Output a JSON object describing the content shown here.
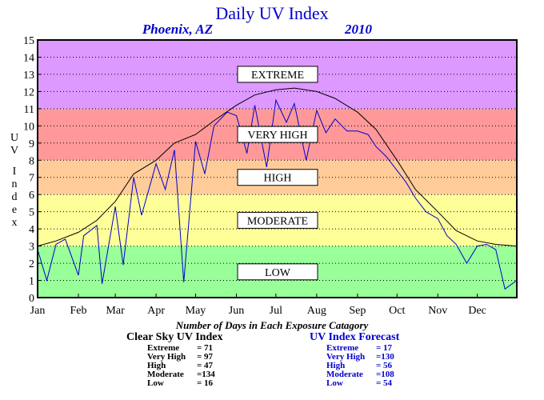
{
  "chart_data": {
    "type": "line",
    "title": "Daily UV Index",
    "subtitle_location": "Phoenix, AZ",
    "subtitle_year": "2010",
    "ylabel": "UV Index",
    "ylim": [
      0,
      15
    ],
    "yticks": [
      "0",
      "1",
      "2",
      "3",
      "4",
      "5",
      "6",
      "7",
      "8",
      "9",
      "10",
      "11",
      "12",
      "13",
      "14",
      "15"
    ],
    "months": [
      "Jan",
      "Feb",
      "Mar",
      "Apr",
      "May",
      "Jun",
      "Jul",
      "Aug",
      "Sep",
      "Oct",
      "Nov",
      "Dec"
    ],
    "grid": true,
    "zones": [
      {
        "label": "LOW",
        "from": 0,
        "to": 3,
        "color": "#99ff99"
      },
      {
        "label": "MODERATE",
        "from": 3,
        "to": 6,
        "color": "#ffff99"
      },
      {
        "label": "HIGH",
        "from": 6,
        "to": 8,
        "color": "#ffcc99"
      },
      {
        "label": "VERY HIGH",
        "from": 8,
        "to": 11,
        "color": "#ff9999"
      },
      {
        "label": "EXTREME",
        "from": 11,
        "to": 15,
        "color": "#dd99ff"
      }
    ],
    "series": [
      {
        "name": "Clear Sky UV Index",
        "color": "#000000",
        "x_day": [
          1,
          15,
          32,
          46,
          60,
          74,
          91,
          105,
          121,
          135,
          152,
          166,
          182,
          196,
          213,
          227,
          244,
          258,
          274,
          288,
          305,
          319,
          335,
          349,
          365
        ],
        "values": [
          3.0,
          3.3,
          3.8,
          4.5,
          5.6,
          7.2,
          8.0,
          9.0,
          9.5,
          10.3,
          11.2,
          11.8,
          12.1,
          12.2,
          12.0,
          11.6,
          10.8,
          9.8,
          8.0,
          6.3,
          5.0,
          3.9,
          3.3,
          3.1,
          3.0
        ]
      },
      {
        "name": "UV Index Forecast",
        "color": "#0000cc",
        "x_day": [
          1,
          8,
          15,
          22,
          32,
          36,
          46,
          50,
          60,
          66,
          74,
          80,
          91,
          98,
          105,
          112,
          121,
          128,
          135,
          145,
          152,
          160,
          166,
          175,
          182,
          190,
          196,
          205,
          213,
          220,
          227,
          236,
          244,
          252,
          258,
          266,
          274,
          281,
          288,
          296,
          305,
          312,
          319,
          327,
          335,
          342,
          349,
          356,
          365
        ],
        "values": [
          2.8,
          1.0,
          3.1,
          3.4,
          1.3,
          3.6,
          4.2,
          0.8,
          5.3,
          1.9,
          7.0,
          4.8,
          7.8,
          6.3,
          8.6,
          0.9,
          9.1,
          7.2,
          10.0,
          10.8,
          10.6,
          8.4,
          11.2,
          7.6,
          11.5,
          10.2,
          11.3,
          8.0,
          10.9,
          9.6,
          10.4,
          9.7,
          9.7,
          9.5,
          8.8,
          8.2,
          7.4,
          6.7,
          5.8,
          5.0,
          4.6,
          3.6,
          3.1,
          2.0,
          3.0,
          3.1,
          2.8,
          0.5,
          1.0
        ]
      }
    ]
  },
  "stats": {
    "caption": "Number of Days in Each Exposure Catagory",
    "clear_sky": {
      "header": "Clear Sky UV Index",
      "rows": [
        {
          "label": "Extreme",
          "value": "=  71"
        },
        {
          "label": "Very High",
          "value": "=  97"
        },
        {
          "label": "High",
          "value": "=  47"
        },
        {
          "label": "Moderate",
          "value": "=134"
        },
        {
          "label": "Low",
          "value": "=  16"
        }
      ]
    },
    "forecast": {
      "header": "UV Index Forecast",
      "rows": [
        {
          "label": "Extreme",
          "value": "=  17"
        },
        {
          "label": "Very High",
          "value": "=130"
        },
        {
          "label": "High",
          "value": "=  56"
        },
        {
          "label": "Moderate",
          "value": "=108"
        },
        {
          "label": "Low",
          "value": "=  54"
        }
      ]
    }
  }
}
